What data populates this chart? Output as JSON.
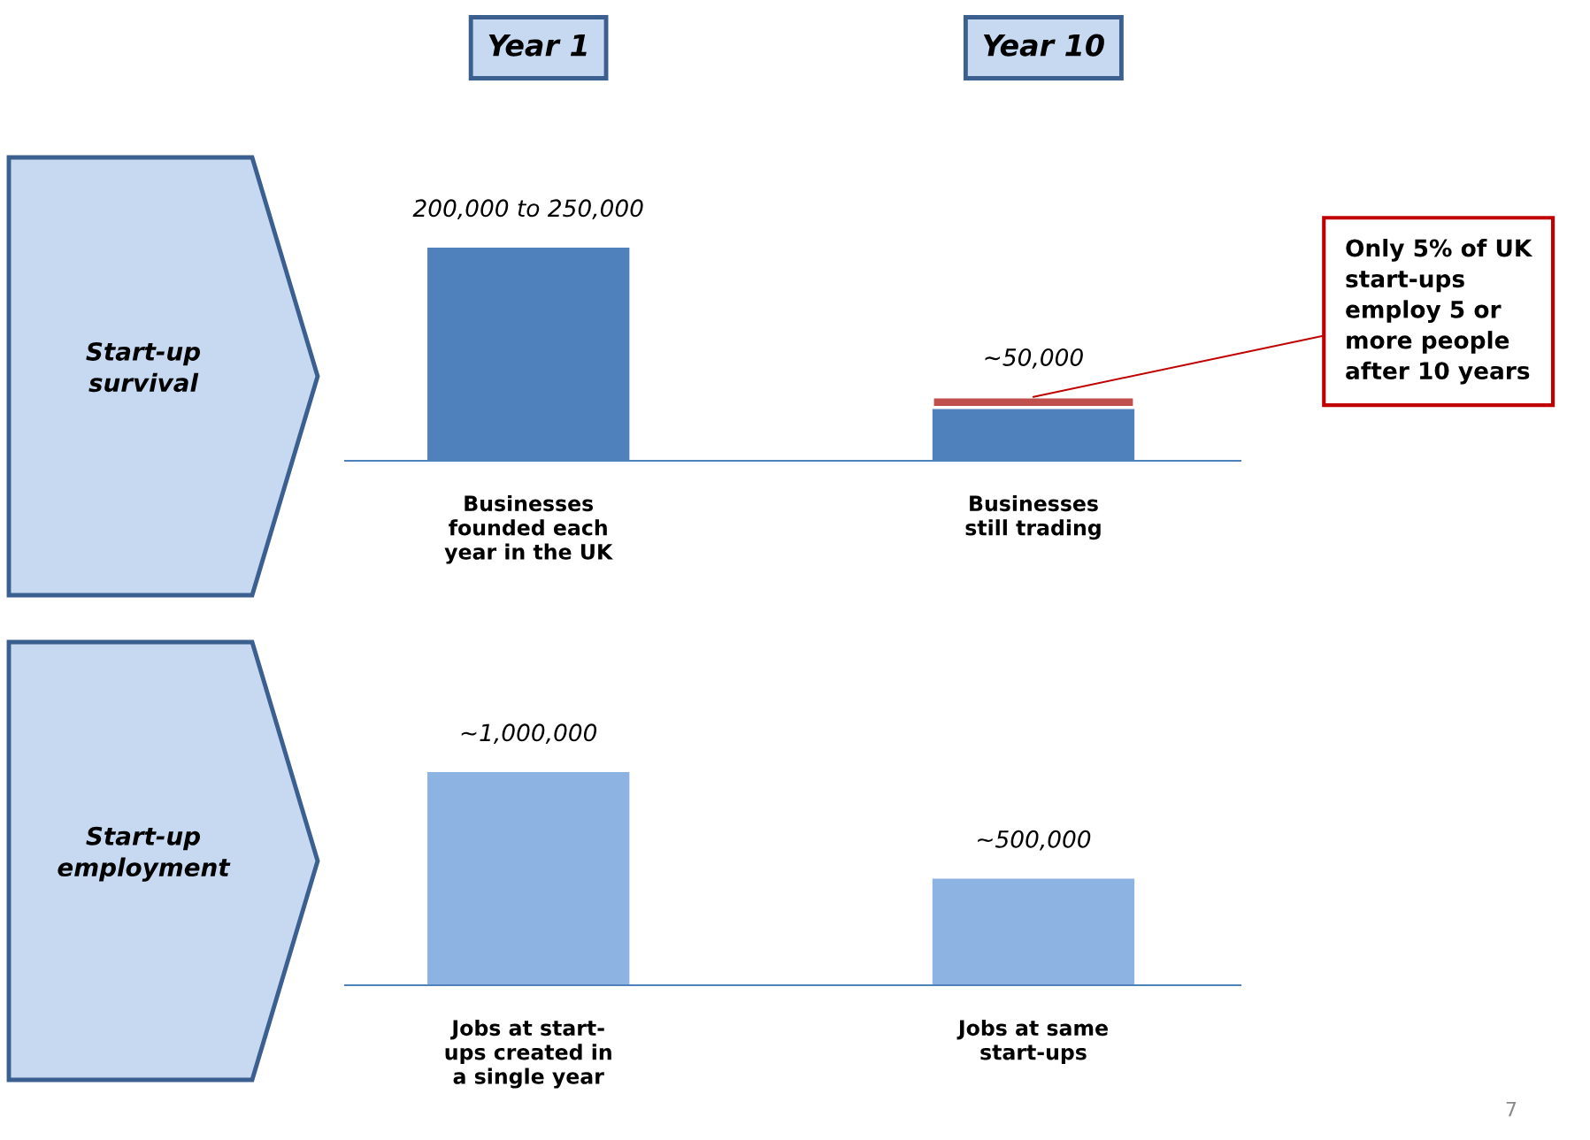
{
  "chart_data": [
    {
      "type": "bar",
      "stacked": true,
      "tick_labels": "x",
      "ylabel": "Start-up\nsurvival",
      "categories": [
        "Businesses\nfounded each\nyear in the UK",
        "Businesses\nstill trading"
      ],
      "series": [
        {
          "color": "#4f81bd",
          "values": [
            200000,
            50000
          ],
          "value_labels": [
            "200,000 to 250,000",
            "~50,000"
          ]
        },
        {
          "color": "#c0504d",
          "values": [
            null,
            10000
          ]
        }
      ],
      "annotations": [
        "Year 1",
        "Year 10",
        {
          "text": "Only 5% of UK\nstart-ups\nemploy 5 or\nmore people\nafter 10 years",
          "x": "Businesses\nstill trading",
          "y": 60000
        }
      ]
    },
    {
      "type": "bar",
      "tick_labels": "x",
      "ylabel": "Start-up\nemployment",
      "categories": [
        "Jobs at start-\nups created in\na single year",
        "Jobs at same\nstart-ups"
      ],
      "series": [
        {
          "color": "#8db3e2",
          "values": [
            1000000,
            500000
          ],
          "value_labels": [
            "~1,000,000",
            "~500,000"
          ]
        }
      ],
      "annotations": [
        "7"
      ]
    }
  ]
}
